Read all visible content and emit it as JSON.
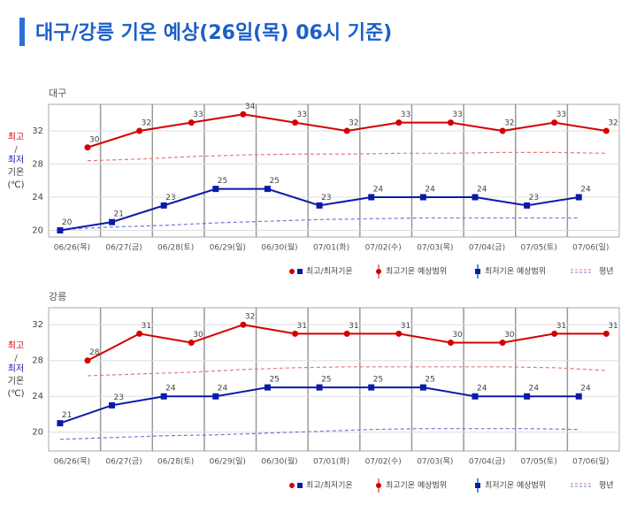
{
  "title": "대구/강릉 기온 예상(26일(목) 06시 기준)",
  "chart_data": [
    {
      "type": "line",
      "title": "대구",
      "ylabel": [
        "최고",
        "/",
        "최저",
        "기온",
        "(℃)"
      ],
      "categories": [
        "06/26(목)",
        "06/27(금)",
        "06/28(토)",
        "06/29(일)",
        "06/30(월)",
        "07/01(화)",
        "07/02(수)",
        "07/03(목)",
        "07/04(금)",
        "07/05(토)",
        "07/06(일)"
      ],
      "series": [
        {
          "color": "#d40000",
          "marker": "circle",
          "values": [
            30,
            32,
            33,
            34,
            33,
            32,
            33,
            33,
            32,
            33,
            32
          ]
        },
        {
          "color": "#0c1aa8",
          "marker": "square",
          "values": [
            20,
            21,
            23,
            25,
            25,
            23,
            24,
            24,
            24,
            23,
            24
          ]
        },
        {
          "color": "#e07a7a",
          "dashed": true,
          "values": [
            28.4,
            28.6,
            28.9,
            29.1,
            29.2,
            29.2,
            29.3,
            29.3,
            29.4,
            29.4,
            29.3
          ]
        },
        {
          "color": "#6f78d8",
          "dashed": true,
          "values": [
            20.1,
            20.4,
            20.6,
            20.9,
            21.1,
            21.3,
            21.4,
            21.5,
            21.5,
            21.5,
            21.5
          ]
        }
      ],
      "legend": [
        "최고/최저기온",
        "최고기온 예상범위",
        "최저기온 예상범위",
        "평년"
      ],
      "ylim": [
        19.2,
        35.2
      ],
      "yticks": [
        20,
        24,
        28,
        32
      ],
      "grid": true
    },
    {
      "type": "line",
      "title": "강릉",
      "ylabel": [
        "최고",
        "/",
        "최저",
        "기온",
        "(℃)"
      ],
      "categories": [
        "06/26(목)",
        "06/27(금)",
        "06/28(토)",
        "06/29(일)",
        "06/30(월)",
        "07/01(화)",
        "07/02(수)",
        "07/03(목)",
        "07/04(금)",
        "07/05(토)",
        "07/06(일)"
      ],
      "series": [
        {
          "color": "#d40000",
          "marker": "circle",
          "values": [
            28,
            31,
            30,
            32,
            31,
            31,
            31,
            30,
            30,
            31,
            31
          ]
        },
        {
          "color": "#0c1aa8",
          "marker": "square",
          "values": [
            21,
            23,
            24,
            24,
            25,
            25,
            25,
            25,
            24,
            24,
            24
          ]
        },
        {
          "color": "#e07a7a",
          "dashed": true,
          "values": [
            26.3,
            26.5,
            26.7,
            27.0,
            27.2,
            27.3,
            27.3,
            27.3,
            27.3,
            27.2,
            26.9
          ]
        },
        {
          "color": "#6f78d8",
          "dashed": true,
          "values": [
            19.2,
            19.4,
            19.6,
            19.7,
            19.9,
            20.1,
            20.3,
            20.4,
            20.4,
            20.4,
            20.3
          ]
        }
      ],
      "legend": [
        "최고/최저기온",
        "최고기온 예상범위",
        "최저기온 예상범위",
        "평년"
      ],
      "ylim": [
        17.9,
        33.9
      ],
      "yticks": [
        20,
        24,
        28,
        32
      ],
      "grid": true
    }
  ]
}
